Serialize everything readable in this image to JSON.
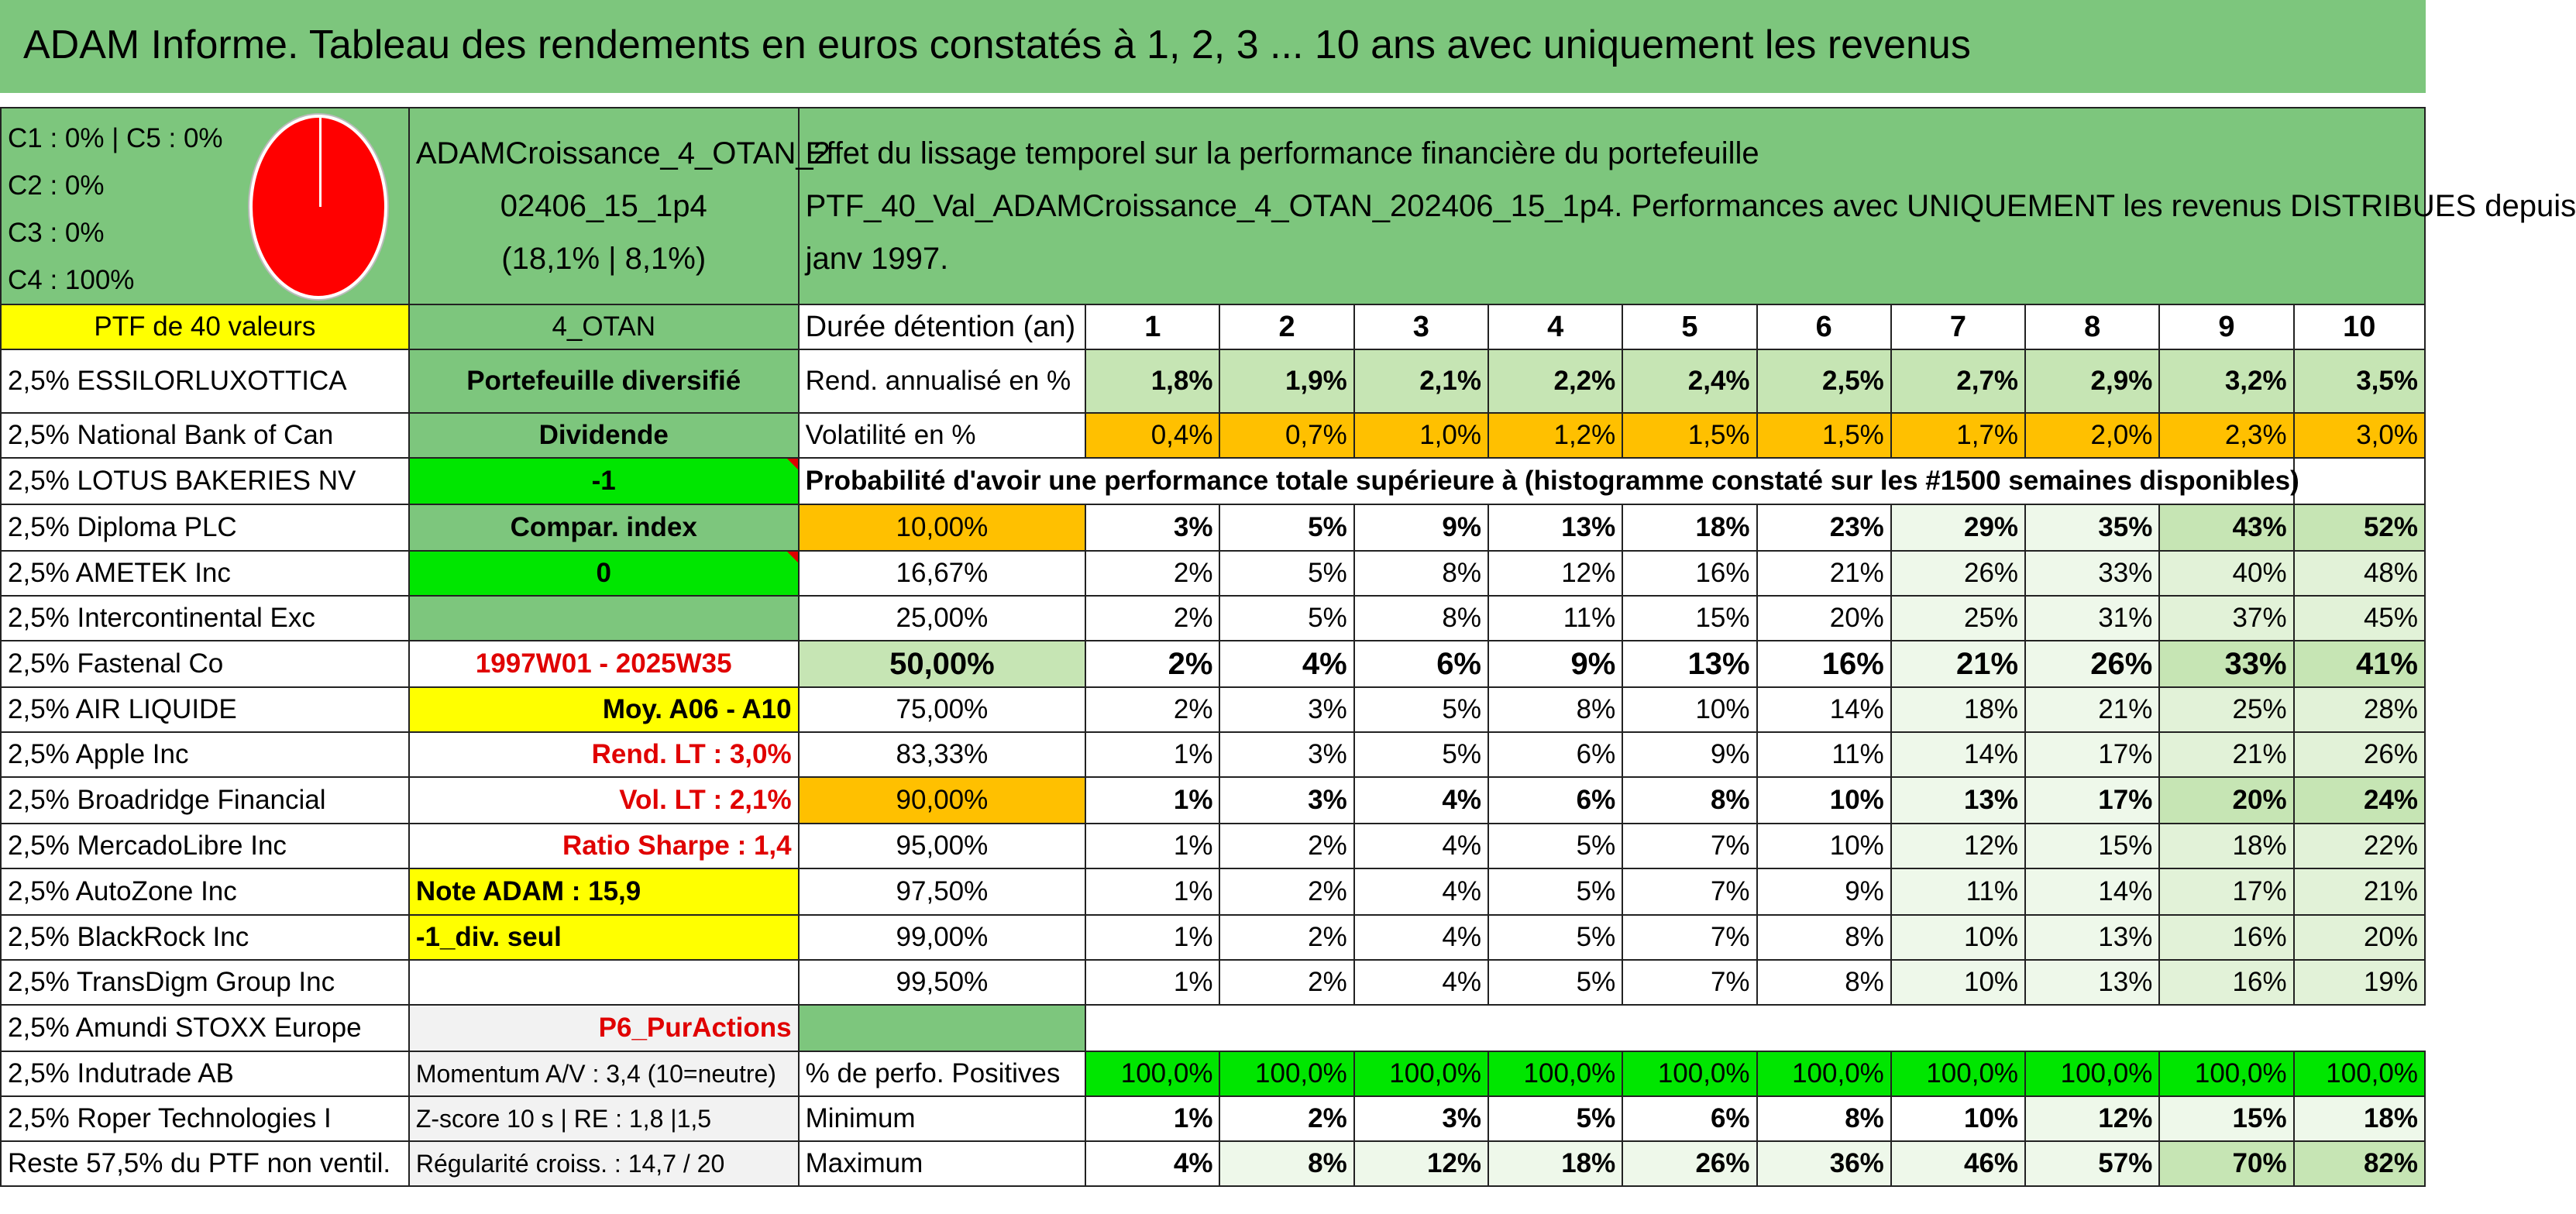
{
  "title": "ADAM Informe. Tableau des rendements en euros constatés à 1, 2, 3 ... 10 ans avec uniquement les revenus",
  "allocation": [
    "C1 : 0% | C5 : 0%",
    "C2 : 0%",
    "C3 : 0%",
    "C4 : 100%"
  ],
  "portfolio": {
    "name_1": "ADAMCroissance_4_OTAN_2",
    "name_2": "02406_15_1p4",
    "stats": "(18,1% | 8,1%)",
    "code": "4_OTAN",
    "type": "Portefeuille diversifié",
    "mode": "Dividende",
    "flag1": "-1",
    "index_label": "Compar. index",
    "flag2": "0",
    "period": "1997W01 - 2025W35",
    "avg": "Moy. A06 - A10",
    "rend": "Rend. LT : 3,0%",
    "vol": "Vol. LT : 2,1%",
    "sharpe": "Ratio Sharpe : 1,4",
    "note": "Note ADAM : 15,9",
    "div": "-1_div. seul",
    "p6": "P6_PurActions",
    "momentum": "Momentum A/V : 3,4 (10=neutre)",
    "zscore": "Z-score 10 s | RE : 1,8 |1,5",
    "regul": "Régularité croiss. : 14,7 / 20"
  },
  "description": {
    "line1": "Effet du lissage temporel sur la performance financière du portefeuille",
    "line2": "PTF_40_Val_ADAMCroissance_4_OTAN_202406_15_1p4. Performances avec UNIQUEMENT les revenus DISTRIBUES depuis",
    "line3": "janv 1997."
  },
  "ptf_header": "PTF de 40 valeurs",
  "holdings": [
    "2,5% ESSILORLUXOTTICA",
    "2,5% National Bank of Can",
    "2,5% LOTUS BAKERIES NV",
    "2,5% Diploma PLC",
    "2,5% AMETEK Inc",
    "2,5% Intercontinental Exc",
    "2,5% Fastenal Co",
    "2,5% AIR LIQUIDE",
    "2,5% Apple Inc",
    "2,5% Broadridge Financial",
    "2,5% MercadoLibre Inc",
    "2,5% AutoZone Inc",
    "2,5% BlackRock Inc",
    "2,5% TransDigm Group Inc",
    "2,5% Amundi STOXX Europe",
    "2,5% Indutrade AB",
    "2,5% Roper Technologies I",
    "Reste 57,5% du PTF non ventil."
  ],
  "labels": {
    "duration": "Durée détention (an)",
    "rend": "Rend. annualisé en %",
    "vol": "Volatilité en %",
    "prob": "Probabilité d'avoir une performance totale supérieure à (histogramme constaté sur les #1500 semaines disponibles)",
    "pos": "% de perfo. Positives",
    "min": "Minimum",
    "max": "Maximum"
  },
  "years": [
    "1",
    "2",
    "3",
    "4",
    "5",
    "6",
    "7",
    "8",
    "9",
    "10"
  ],
  "rend": [
    "1,8%",
    "1,9%",
    "2,1%",
    "2,2%",
    "2,4%",
    "2,5%",
    "2,7%",
    "2,9%",
    "3,2%",
    "3,5%"
  ],
  "vol": [
    "0,4%",
    "0,7%",
    "1,0%",
    "1,2%",
    "1,5%",
    "1,5%",
    "1,7%",
    "2,0%",
    "2,3%",
    "3,0%"
  ],
  "quantiles": [
    {
      "q": "10,00%",
      "v": [
        "3%",
        "5%",
        "9%",
        "13%",
        "18%",
        "23%",
        "29%",
        "35%",
        "43%",
        "52%"
      ]
    },
    {
      "q": "16,67%",
      "v": [
        "2%",
        "5%",
        "8%",
        "12%",
        "16%",
        "21%",
        "26%",
        "33%",
        "40%",
        "48%"
      ]
    },
    {
      "q": "25,00%",
      "v": [
        "2%",
        "5%",
        "8%",
        "11%",
        "15%",
        "20%",
        "25%",
        "31%",
        "37%",
        "45%"
      ]
    },
    {
      "q": "50,00%",
      "v": [
        "2%",
        "4%",
        "6%",
        "9%",
        "13%",
        "16%",
        "21%",
        "26%",
        "33%",
        "41%"
      ]
    },
    {
      "q": "75,00%",
      "v": [
        "2%",
        "3%",
        "5%",
        "8%",
        "10%",
        "14%",
        "18%",
        "21%",
        "25%",
        "28%"
      ]
    },
    {
      "q": "83,33%",
      "v": [
        "1%",
        "3%",
        "5%",
        "6%",
        "9%",
        "11%",
        "14%",
        "17%",
        "21%",
        "26%"
      ]
    },
    {
      "q": "90,00%",
      "v": [
        "1%",
        "3%",
        "4%",
        "6%",
        "8%",
        "10%",
        "13%",
        "17%",
        "20%",
        "24%"
      ]
    },
    {
      "q": "95,00%",
      "v": [
        "1%",
        "2%",
        "4%",
        "5%",
        "7%",
        "10%",
        "12%",
        "15%",
        "18%",
        "22%"
      ]
    },
    {
      "q": "97,50%",
      "v": [
        "1%",
        "2%",
        "4%",
        "5%",
        "7%",
        "9%",
        "11%",
        "14%",
        "17%",
        "21%"
      ]
    },
    {
      "q": "99,00%",
      "v": [
        "1%",
        "2%",
        "4%",
        "5%",
        "7%",
        "8%",
        "10%",
        "13%",
        "16%",
        "20%"
      ]
    },
    {
      "q": "99,50%",
      "v": [
        "1%",
        "2%",
        "4%",
        "5%",
        "7%",
        "8%",
        "10%",
        "13%",
        "16%",
        "19%"
      ]
    }
  ],
  "positives": [
    "100,0%",
    "100,0%",
    "100,0%",
    "100,0%",
    "100,0%",
    "100,0%",
    "100,0%",
    "100,0%",
    "100,0%",
    "100,0%"
  ],
  "minimum": [
    "1%",
    "2%",
    "3%",
    "5%",
    "6%",
    "8%",
    "10%",
    "12%",
    "15%",
    "18%"
  ],
  "maximum": [
    "4%",
    "8%",
    "12%",
    "18%",
    "26%",
    "36%",
    "46%",
    "57%",
    "70%",
    "82%"
  ]
}
